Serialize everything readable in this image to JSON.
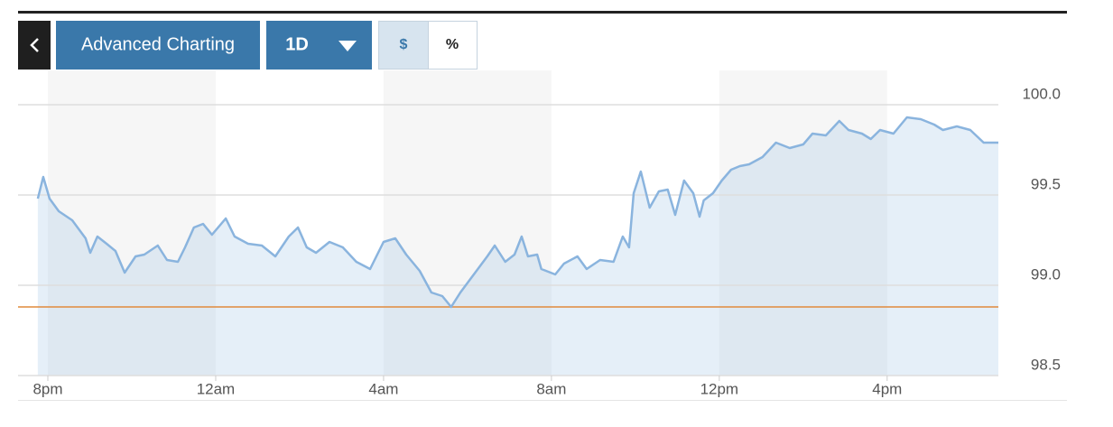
{
  "toolbar": {
    "advanced": "Advanced Charting",
    "range": "1D",
    "currency": "$",
    "percent": "%"
  },
  "chart_data": {
    "type": "area",
    "color": "#8ab4de",
    "reference_line": 98.88,
    "reference_color": "#e08a3c",
    "grid": true,
    "xlim": [
      -0.71,
      22.65
    ],
    "ylim": [
      98.5,
      100.0
    ],
    "xticks": [
      {
        "value": 0,
        "label": "8pm"
      },
      {
        "value": 4,
        "label": "12am"
      },
      {
        "value": 8,
        "label": "4am"
      },
      {
        "value": 12,
        "label": "8am"
      },
      {
        "value": 16,
        "label": "12pm"
      },
      {
        "value": 20,
        "label": "4pm"
      }
    ],
    "yticks": [
      {
        "value": 100,
        "label": "100.0"
      },
      99.5,
      {
        "value": 99,
        "label": "99.0"
      },
      98.5
    ],
    "x": [
      -0.24,
      -0.11,
      0.04,
      0.26,
      0.58,
      0.9,
      1.01,
      1.18,
      1.4,
      1.61,
      1.83,
      2.09,
      2.3,
      2.62,
      2.84,
      3.1,
      3.27,
      3.48,
      3.7,
      3.91,
      4.24,
      4.45,
      4.77,
      5.1,
      5.42,
      5.74,
      5.96,
      6.17,
      6.39,
      6.71,
      7.03,
      7.35,
      7.68,
      8.0,
      8.28,
      8.54,
      8.86,
      9.14,
      9.4,
      9.61,
      9.83,
      10.15,
      10.47,
      10.65,
      10.9,
      11.12,
      11.29,
      11.44,
      11.66,
      11.76,
      12.09,
      12.3,
      12.62,
      12.84,
      13.16,
      13.48,
      13.7,
      13.85,
      13.96,
      14.13,
      14.34,
      14.56,
      14.77,
      14.95,
      15.16,
      15.38,
      15.53,
      15.63,
      15.85,
      16.06,
      16.28,
      16.49,
      16.71,
      17.03,
      17.35,
      17.68,
      18.0,
      18.22,
      18.54,
      18.86,
      19.08,
      19.4,
      19.61,
      19.83,
      20.15,
      20.47,
      20.8,
      21.12,
      21.33,
      21.66,
      21.98,
      22.3,
      22.65
    ],
    "values": [
      99.48,
      99.6,
      99.48,
      99.41,
      99.36,
      99.26,
      99.18,
      99.27,
      99.23,
      99.19,
      99.07,
      99.16,
      99.17,
      99.22,
      99.14,
      99.13,
      99.21,
      99.32,
      99.34,
      99.28,
      99.37,
      99.27,
      99.23,
      99.22,
      99.16,
      99.27,
      99.32,
      99.21,
      99.18,
      99.24,
      99.21,
      99.13,
      99.09,
      99.24,
      99.26,
      99.17,
      99.08,
      98.96,
      98.94,
      98.88,
      98.96,
      99.06,
      99.16,
      99.22,
      99.13,
      99.17,
      99.27,
      99.16,
      99.17,
      99.09,
      99.06,
      99.12,
      99.16,
      99.09,
      99.14,
      99.13,
      99.27,
      99.21,
      99.51,
      99.63,
      99.43,
      99.52,
      99.53,
      99.39,
      99.58,
      99.51,
      99.38,
      99.47,
      99.51,
      99.58,
      99.64,
      99.66,
      99.67,
      99.71,
      99.79,
      99.76,
      99.78,
      99.84,
      99.83,
      99.91,
      99.86,
      99.84,
      99.81,
      99.86,
      99.84,
      99.93,
      99.92,
      99.89,
      99.86,
      99.88,
      99.86,
      99.79,
      99.79
    ]
  }
}
